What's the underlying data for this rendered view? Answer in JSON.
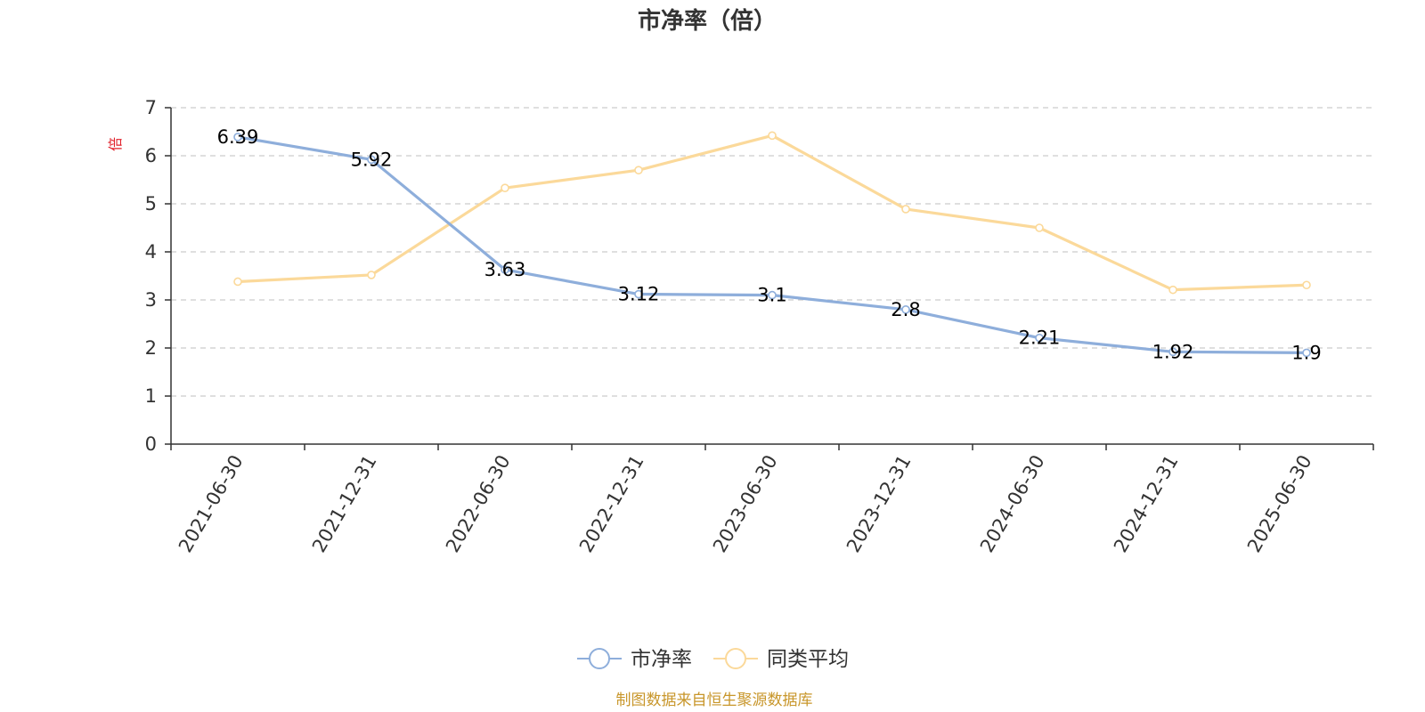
{
  "chart_data": {
    "type": "line",
    "title": "市净率（倍）",
    "ylabel": "倍",
    "xlabel": "",
    "categories": [
      "2021-06-30",
      "2021-12-31",
      "2022-06-30",
      "2022-12-31",
      "2023-06-30",
      "2023-12-31",
      "2024-06-30",
      "2024-12-31",
      "2025-06-30"
    ],
    "ylim": [
      0,
      7
    ],
    "yticks": [
      0,
      1,
      2,
      3,
      4,
      5,
      6,
      7
    ],
    "grid": true,
    "legend_position": "bottom-center",
    "series": [
      {
        "name": "市净率",
        "color": "#8eaedb",
        "values": [
          6.39,
          5.92,
          3.63,
          3.12,
          3.1,
          2.8,
          2.21,
          1.92,
          1.9
        ],
        "labels": [
          "6.39",
          "5.92",
          "3.63",
          "3.12",
          "3.1",
          "2.8",
          "2.21",
          "1.92",
          "1.9"
        ]
      },
      {
        "name": "同类平均",
        "color": "#fbd99a",
        "values": [
          3.38,
          3.52,
          5.33,
          5.7,
          6.42,
          4.89,
          4.5,
          3.21,
          3.31
        ]
      }
    ]
  },
  "source": "制图数据来自恒生聚源数据库"
}
